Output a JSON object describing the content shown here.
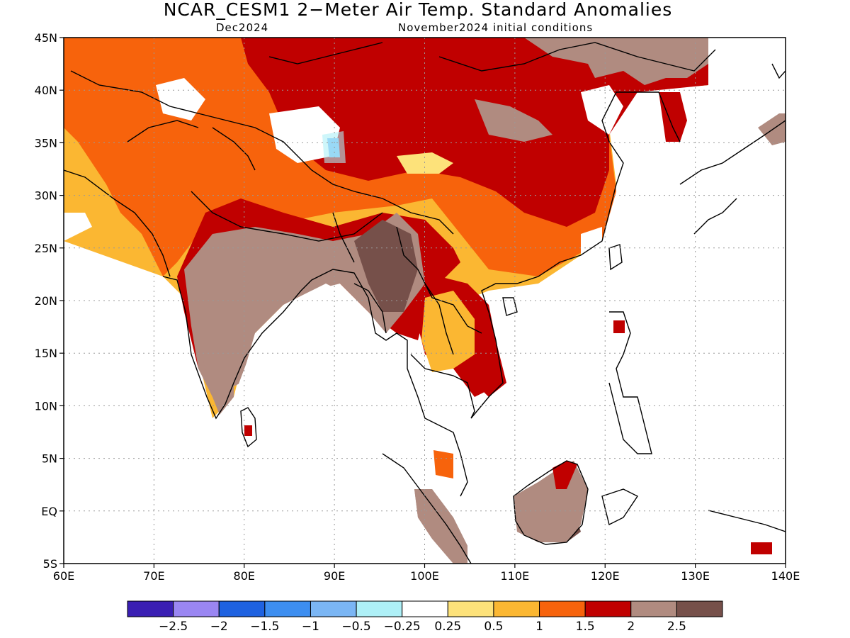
{
  "title": "NCAR_CESM1 2−Meter Air Temp. Standard Anomalies",
  "subtitle_left": "Dec2024",
  "subtitle_right": "November2024 initial conditions",
  "map": {
    "lon_range": [
      60,
      140
    ],
    "lat_range": [
      -5,
      45
    ],
    "lon_ticks": [
      {
        "value": 60,
        "label": "60E"
      },
      {
        "value": 70,
        "label": "70E"
      },
      {
        "value": 80,
        "label": "80E"
      },
      {
        "value": 90,
        "label": "90E"
      },
      {
        "value": 100,
        "label": "100E"
      },
      {
        "value": 110,
        "label": "110E"
      },
      {
        "value": 120,
        "label": "120E"
      },
      {
        "value": 130,
        "label": "130E"
      },
      {
        "value": 140,
        "label": "140E"
      }
    ],
    "lat_ticks": [
      {
        "value": 45,
        "label": "45N"
      },
      {
        "value": 40,
        "label": "40N"
      },
      {
        "value": 35,
        "label": "35N"
      },
      {
        "value": 30,
        "label": "30N"
      },
      {
        "value": 25,
        "label": "25N"
      },
      {
        "value": 20,
        "label": "20N"
      },
      {
        "value": 15,
        "label": "15N"
      },
      {
        "value": 10,
        "label": "10N"
      },
      {
        "value": 5,
        "label": "5N"
      },
      {
        "value": 0,
        "label": "EQ"
      },
      {
        "value": -5,
        "label": "5S"
      }
    ],
    "grid": "dotted"
  },
  "colorbar": {
    "colors": [
      "#3a1fb3",
      "#9a86f2",
      "#1f62e0",
      "#3d8ef0",
      "#7bb6f4",
      "#aef0f7",
      "#ffffff",
      "#fde27a",
      "#fbb732",
      "#f7630c",
      "#c00000",
      "#b08b80",
      "#76504a"
    ],
    "labels": [
      "−2.5",
      "−2",
      "−1.5",
      "−1",
      "−0.5",
      "−0.25",
      "0.25",
      "0.5",
      "1",
      "1.5",
      "2",
      "2.5"
    ]
  }
}
